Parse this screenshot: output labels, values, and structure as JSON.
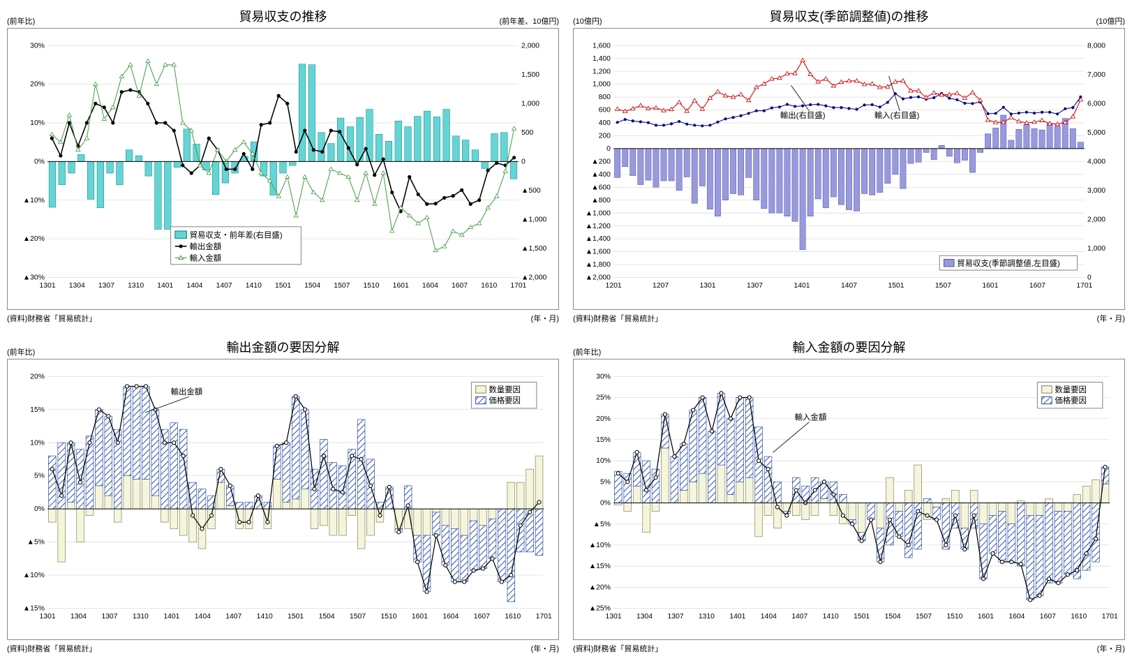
{
  "common": {
    "source": "(資料)財務省「貿易統計」",
    "x_unit": "(年・月)",
    "colors": {
      "grid": "#cccccc",
      "border": "#888888",
      "text": "#000000",
      "cyan_bar": "#66d4d4",
      "cyan_bar_border": "#008888",
      "black_line": "#000000",
      "green_line": "#4a9d4a",
      "lavender_bar": "#9999dd",
      "lavender_border": "#5555aa",
      "navy": "#000080",
      "red": "#cc0000",
      "beige_bar": "#f5f5dc",
      "beige_border": "#888866",
      "hatch_bar_fill": "#ffffff",
      "hatch_stroke": "#3355aa"
    }
  },
  "chart1": {
    "title": "貿易収支の推移",
    "left_label": "(前年比)",
    "right_label": "(前年差、10億円)",
    "left_ylim": [
      -30,
      30
    ],
    "left_ticks": [
      -30,
      -20,
      -10,
      0,
      10,
      20,
      30
    ],
    "left_tick_labels": [
      "▲30%",
      "▲20%",
      "▲10%",
      "0%",
      "10%",
      "20%",
      "30%"
    ],
    "right_ylim": [
      -2000,
      2000
    ],
    "right_ticks": [
      -2000,
      -1500,
      -1000,
      -500,
      0,
      500,
      1000,
      1500,
      2000
    ],
    "right_tick_labels": [
      "▲2,000",
      "▲1,500",
      "▲1,000",
      "▲500",
      "0",
      "500",
      "1,000",
      "1,500",
      "2,000"
    ],
    "x_ticks": [
      "1301",
      "1304",
      "1307",
      "1310",
      "1401",
      "1404",
      "1407",
      "1410",
      "1501",
      "1504",
      "1507",
      "1510",
      "1601",
      "1604",
      "1607",
      "1610",
      "1701"
    ],
    "legend": {
      "items": [
        {
          "label": "貿易収支・前年差(右目盛)",
          "type": "cyan-bar"
        },
        {
          "label": "輸出金額",
          "type": "black-line"
        },
        {
          "label": "輸入金額",
          "type": "green-line"
        }
      ]
    },
    "bars": [
      -790,
      -400,
      -200,
      120,
      -650,
      -800,
      -200,
      -400,
      200,
      100,
      -250,
      -1170,
      -1170,
      -100,
      560,
      300,
      -150,
      -570,
      -370,
      -200,
      90,
      340,
      -250,
      -580,
      -200,
      -70,
      1680,
      1670,
      500,
      310,
      750,
      600,
      760,
      900,
      470,
      350,
      700,
      600,
      780,
      870,
      770,
      900,
      440,
      370,
      200,
      -120,
      480,
      500,
      -300
    ],
    "export_line": [
      6,
      1.5,
      10,
      4,
      10,
      15,
      14,
      10,
      18,
      18.5,
      18,
      15,
      10,
      10,
      8,
      -1,
      -3,
      -1,
      6,
      3,
      -2,
      -2,
      2,
      -2,
      9.5,
      10,
      17,
      15,
      2.5,
      8,
      3,
      2.5,
      8,
      7.7,
      3.5,
      -0.8,
      3.3,
      -3.5,
      0.6,
      -8,
      -12.9,
      -4,
      -8.5,
      -11,
      -10.9,
      -9.4,
      -8.9,
      -7.4,
      -11,
      -10,
      -2.3,
      -0.4,
      -1,
      1
    ],
    "import_line": [
      7,
      5,
      12,
      3,
      6,
      20,
      11,
      14,
      22,
      25,
      17,
      26,
      20,
      25,
      25,
      10,
      8,
      -1,
      -3,
      3,
      0,
      3,
      5,
      2,
      -3,
      -5,
      -9,
      -4,
      -14,
      -4,
      -8,
      -10,
      -2,
      -3,
      -4,
      -10,
      -3,
      -11,
      -3,
      -18,
      -12,
      -14,
      -16,
      -14.5,
      -23,
      -22,
      -18,
      -19,
      -17,
      -16,
      -12,
      -9,
      -2.5,
      8.5
    ]
  },
  "chart2": {
    "title": "貿易収支(季節調整値)の推移",
    "left_label": "(10億円)",
    "right_label": "(10億円)",
    "left_ylim": [
      -2000,
      1600
    ],
    "left_ticks": [
      -2000,
      -1800,
      -1600,
      -1400,
      -1200,
      -1000,
      -800,
      -600,
      -400,
      -200,
      0,
      200,
      400,
      600,
      800,
      1000,
      1200,
      1400,
      1600
    ],
    "left_tick_labels": [
      "▲2,000",
      "▲1,800",
      "▲1,600",
      "▲1,400",
      "▲1,200",
      "▲1,000",
      "▲800",
      "▲600",
      "▲400",
      "▲200",
      "0",
      "200",
      "400",
      "600",
      "800",
      "1,000",
      "1,200",
      "1,400",
      "1,600"
    ],
    "right_ylim": [
      0,
      8000
    ],
    "right_ticks": [
      0,
      1000,
      2000,
      3000,
      4000,
      5000,
      6000,
      7000,
      8000
    ],
    "right_tick_labels": [
      "0",
      "1,000",
      "2,000",
      "3,000",
      "4,000",
      "5,000",
      "6,000",
      "7,000",
      "8,000"
    ],
    "x_ticks": [
      "1201",
      "1207",
      "1301",
      "1307",
      "1401",
      "1407",
      "1501",
      "1507",
      "1601",
      "1607",
      "1701"
    ],
    "legend": {
      "items": [
        {
          "label": "貿易収支(季節調整値,左目盛)",
          "type": "lavender-bar"
        }
      ]
    },
    "callouts": [
      {
        "label": "輸出(右目盛)"
      },
      {
        "label": "輸入(右目盛)"
      }
    ],
    "bars": [
      -450,
      -280,
      -420,
      -560,
      -490,
      -600,
      -500,
      -500,
      -650,
      -440,
      -850,
      -580,
      -940,
      -1050,
      -800,
      -700,
      -720,
      -450,
      -800,
      -930,
      -1000,
      -1000,
      -1050,
      -1130,
      -1570,
      -1050,
      -780,
      -920,
      -750,
      -870,
      -950,
      -970,
      -700,
      -720,
      -680,
      -540,
      -400,
      -620,
      -230,
      -210,
      -60,
      -170,
      50,
      -120,
      -220,
      -180,
      -370,
      -60,
      230,
      320,
      520,
      130,
      300,
      370,
      310,
      290,
      390,
      350,
      470,
      310,
      100
    ],
    "export_line": [
      5350,
      5450,
      5400,
      5370,
      5340,
      5250,
      5250,
      5300,
      5380,
      5290,
      5250,
      5230,
      5250,
      5360,
      5470,
      5520,
      5580,
      5660,
      5750,
      5750,
      5850,
      5880,
      5970,
      5900,
      5920,
      5960,
      5970,
      5920,
      5860,
      5860,
      5830,
      5800,
      5950,
      5960,
      5880,
      6040,
      6340,
      6160,
      6210,
      6230,
      6150,
      6200,
      6350,
      6180,
      6130,
      6010,
      6000,
      6050,
      5650,
      5660,
      5870,
      5640,
      5670,
      5700,
      5670,
      5700,
      5700,
      5640,
      5820,
      5860,
      6230
    ],
    "import_line": [
      5810,
      5730,
      5820,
      5930,
      5830,
      5850,
      5760,
      5800,
      6040,
      5740,
      6100,
      5810,
      6190,
      6410,
      6270,
      6220,
      6310,
      6110,
      6560,
      6680,
      6850,
      6880,
      7030,
      7040,
      7490,
      7010,
      6750,
      6850,
      6610,
      6740,
      6780,
      6780,
      6660,
      6680,
      6560,
      6580,
      6750,
      6780,
      6440,
      6440,
      6210,
      6370,
      6300,
      6310,
      6350,
      6190,
      6380,
      6110,
      5430,
      5350,
      5360,
      5510,
      5380,
      5330,
      5360,
      5420,
      5310,
      5290,
      5350,
      5550,
      6130
    ]
  },
  "chart3": {
    "title": "輸出金額の要因分解",
    "left_label": "(前年比)",
    "left_ylim": [
      -15,
      20
    ],
    "left_ticks": [
      -15,
      -10,
      -5,
      0,
      5,
      10,
      15,
      20
    ],
    "left_tick_labels": [
      "▲15%",
      "▲10%",
      "▲5%",
      "0%",
      "5%",
      "10%",
      "15%",
      "20%"
    ],
    "x_ticks": [
      "1301",
      "1304",
      "1307",
      "1310",
      "1401",
      "1404",
      "1407",
      "1410",
      "1501",
      "1504",
      "1507",
      "1510",
      "1601",
      "1604",
      "1607",
      "1610",
      "1701"
    ],
    "legend": {
      "items": [
        {
          "label": "数量要因",
          "type": "beige-bar"
        },
        {
          "label": "価格要因",
          "type": "hatch-bar"
        }
      ]
    },
    "callout": "輸出金額",
    "qty": [
      -2,
      -8,
      1,
      -5,
      -1,
      3.5,
      2,
      -2,
      5,
      4.5,
      4.5,
      2,
      -2,
      -3,
      -4,
      -5,
      -6,
      -3,
      4,
      0.5,
      -3,
      -3,
      0,
      -3,
      4.5,
      1,
      1.5,
      3,
      -3,
      -2.5,
      -4,
      -4,
      -1,
      -6,
      -4,
      -2,
      0,
      -3,
      -3,
      -4,
      -4,
      -0.5,
      -2.5,
      -3,
      -4,
      -1.8,
      -2.5,
      -1.5,
      0,
      4,
      4,
      6,
      8
    ],
    "price": [
      8,
      10,
      9,
      9,
      11,
      11.5,
      12,
      12,
      13.5,
      14,
      14,
      13,
      12,
      13,
      12,
      4,
      3,
      2,
      2,
      3,
      1,
      1,
      2,
      1,
      5,
      9,
      15.5,
      12,
      6,
      10.5,
      7,
      6.5,
      9,
      13.5,
      7.5,
      1,
      3.3,
      -0.5,
      3.5,
      -4,
      -8.5,
      -3.5,
      -6,
      -8,
      -7,
      -7.5,
      -6.5,
      -6,
      -11,
      -14,
      -6.5,
      -6.5,
      -7
    ],
    "total_line": [
      6,
      2,
      10,
      4,
      10,
      15,
      14,
      10,
      18.5,
      18.5,
      18.5,
      15,
      10,
      10,
      8,
      -1,
      -3,
      -1,
      6,
      3.5,
      -2,
      -2,
      2,
      -2,
      9.5,
      10,
      17,
      15,
      3,
      8,
      3,
      2.5,
      8,
      7.5,
      3.5,
      -1,
      3.3,
      -3.5,
      0.5,
      -8,
      -12.5,
      -4,
      -8.5,
      -11,
      -11,
      -9.3,
      -9,
      -7.5,
      -11,
      -10,
      -2.5,
      -0.5,
      1
    ]
  },
  "chart4": {
    "title": "輸入金額の要因分解",
    "left_label": "(前年比)",
    "left_ylim": [
      -25,
      30
    ],
    "left_ticks": [
      -25,
      -20,
      -15,
      -10,
      -5,
      0,
      5,
      10,
      15,
      20,
      25,
      30
    ],
    "left_tick_labels": [
      "▲25%",
      "▲20%",
      "▲15%",
      "▲10%",
      "▲5%",
      "0%",
      "5%",
      "10%",
      "15%",
      "20%",
      "25%",
      "30%"
    ],
    "x_ticks": [
      "1301",
      "1304",
      "1307",
      "1310",
      "1401",
      "1404",
      "1407",
      "1410",
      "1501",
      "1504",
      "1507",
      "1510",
      "1601",
      "1604",
      "1607",
      "1610",
      "1701"
    ],
    "legend": {
      "items": [
        {
          "label": "数量要因",
          "type": "beige-bar"
        },
        {
          "label": "価格要因",
          "type": "hatch-bar"
        }
      ]
    },
    "callout": "輸入金額",
    "qty": [
      -0.5,
      -2,
      4,
      -7,
      -2,
      13,
      0,
      3,
      5,
      7,
      0,
      9,
      2,
      5,
      6,
      -8,
      -3,
      -6,
      -2,
      -3,
      -4,
      -3,
      1,
      -3,
      -5,
      -4,
      -7,
      0,
      -6,
      6,
      -2,
      3,
      9,
      -4,
      -1,
      1,
      3,
      -6,
      3,
      -5,
      -3,
      -2,
      -5,
      0.5,
      -3,
      -3,
      1,
      -2,
      -2,
      2,
      4,
      5.5,
      4.5
    ],
    "price": [
      7.5,
      7,
      8,
      10,
      8,
      8,
      11,
      11,
      17,
      18,
      17,
      17,
      18,
      20,
      19,
      18,
      11,
      5,
      -0.5,
      6,
      4,
      6,
      4,
      5,
      2,
      -1,
      -2,
      -4,
      -8,
      -10,
      -6,
      -13,
      -11,
      1,
      -3,
      -11,
      -6,
      -5,
      -6,
      -13,
      -9,
      -12,
      -9,
      -15,
      -20,
      -19,
      -19,
      -17,
      -15,
      -18,
      -16,
      -14,
      4
    ],
    "total_line": [
      7,
      5,
      12,
      3,
      6,
      21,
      11,
      14,
      22,
      25,
      17,
      26,
      20,
      25,
      25,
      10,
      8,
      -1,
      -3,
      3,
      0,
      3,
      5,
      2,
      -3,
      -5,
      -9,
      -4,
      -14,
      -4,
      -8,
      -10,
      -2,
      -3,
      -4,
      -10,
      -3,
      -11,
      -3,
      -18,
      -12,
      -14,
      -14,
      -14.5,
      -23,
      -22,
      -18,
      -19,
      -17,
      -16,
      -12,
      -8.5,
      8.5
    ]
  }
}
